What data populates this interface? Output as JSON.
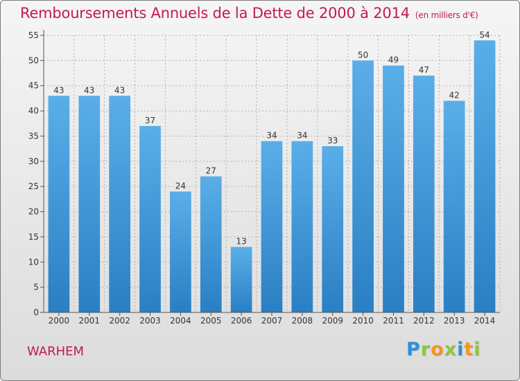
{
  "chart_data": {
    "type": "bar",
    "title": "Remboursements Annuels de la Dette de 2000 à 2014",
    "subtitle": "(en milliers d'€)",
    "categories": [
      "2000",
      "2001",
      "2002",
      "2003",
      "2004",
      "2005",
      "2006",
      "2007",
      "2008",
      "2009",
      "2010",
      "2011",
      "2012",
      "2013",
      "2014"
    ],
    "values": [
      43,
      43,
      43,
      37,
      24,
      27,
      13,
      34,
      34,
      33,
      50,
      49,
      47,
      42,
      54
    ],
    "ylim": [
      0,
      55
    ],
    "yticks": [
      0,
      5,
      10,
      15,
      20,
      25,
      30,
      35,
      40,
      45,
      50,
      55
    ],
    "xlabel": "",
    "ylabel": "",
    "grid": true,
    "colors": {
      "bar_light": "#5aaee8",
      "bar_dark": "#1f77b4",
      "grid": "#b0b0b0",
      "axis": "#555555"
    }
  },
  "footer": {
    "place": "WARHEM",
    "logo_letters": [
      {
        "ch": "P",
        "color": "#2f8fd8"
      },
      {
        "ch": "r",
        "color": "#8cc63f"
      },
      {
        "ch": "o",
        "color": "#f7941d"
      },
      {
        "ch": "x",
        "color": "#8cc63f"
      },
      {
        "ch": "i",
        "color": "#2f8fd8"
      },
      {
        "ch": "t",
        "color": "#f7941d"
      },
      {
        "ch": "i",
        "color": "#8cc63f"
      }
    ]
  }
}
